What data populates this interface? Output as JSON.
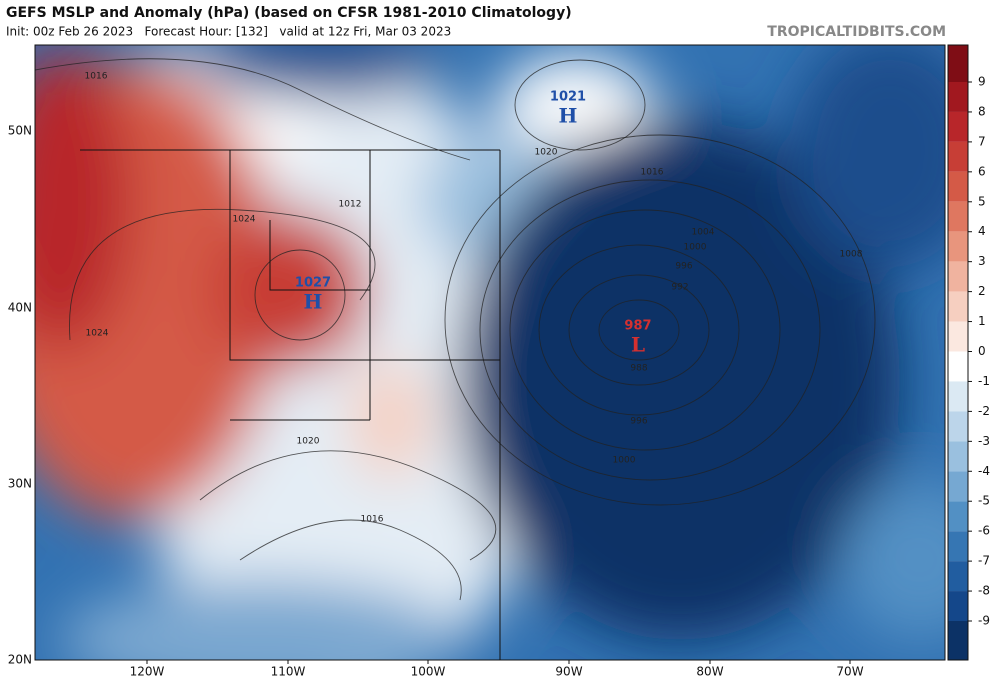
{
  "header": {
    "title": "GEFS MSLP and Anomaly (hPa) (based on CFSR 1981-2010 Climatology)",
    "subtitle": "Init: 00z Feb 26 2023   Forecast Hour: [132]   valid at 12z Fri, Mar 03 2023",
    "brand": "TROPICALTIDBITS.COM"
  },
  "map": {
    "latitudes": [
      "50N",
      "40N",
      "30N",
      "20N"
    ],
    "longitudes": [
      "120W",
      "110W",
      "100W",
      "90W",
      "80W",
      "70W"
    ],
    "centers": [
      {
        "pressure": "1021",
        "symbol": "H"
      },
      {
        "pressure": "1027",
        "symbol": "H"
      },
      {
        "pressure": "987",
        "symbol": "L"
      }
    ],
    "contour_labels": [
      "1016",
      "1020",
      "1016",
      "1012",
      "1024",
      "1024",
      "1020",
      "1016",
      "1008",
      "1004",
      "1000",
      "996",
      "992",
      "988",
      "996",
      "1000"
    ]
  },
  "colorbar": {
    "ticks": [
      9,
      8,
      7,
      6,
      5,
      4,
      3,
      2,
      1,
      0,
      -1,
      -2,
      -3,
      -4,
      -5,
      -6,
      -7,
      -8,
      -9
    ],
    "colors": [
      "#7f0d15",
      "#a1181f",
      "#b8262a",
      "#c73e36",
      "#d45a47",
      "#df7760",
      "#e8957d",
      "#f0b39f",
      "#f6cfc0",
      "#fbe8e0",
      "#ffffff",
      "#dbe9f3",
      "#bcd5ea",
      "#9ac0df",
      "#76a8d2",
      "#5290c4",
      "#3676b3",
      "#215da0",
      "#14478a",
      "#0c3266"
    ]
  }
}
